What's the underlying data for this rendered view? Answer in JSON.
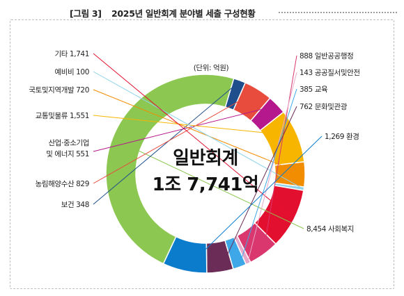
{
  "figure_label": "[그림 3]",
  "figure_title": "2025년 일반회계 분야별 세출 구성현황",
  "chart_data": {
    "type": "pie",
    "variant": "donut",
    "unit_note": "(단위: 억원)",
    "center_text_line1": "일반회계",
    "center_text_line2": "1조 7,741억",
    "legend_placement": "callout labels around ring",
    "slices": [
      {
        "name": "사회복지",
        "value": 8454,
        "label": "8,454 사회복지",
        "color": "#8cc751"
      },
      {
        "name": "보건",
        "value": 348,
        "label": "보건 348",
        "color": "#1f4e8c"
      },
      {
        "name": "농림해양수산",
        "value": 829,
        "label": "농림해양수산 829",
        "color": "#e84c3d"
      },
      {
        "name": "산업·중소기업 및 에너지",
        "value": 551,
        "label_line1": "산업·중소기업",
        "label_line2": "및 에너지 551",
        "color": "#b5178c"
      },
      {
        "name": "교통및물류",
        "value": 1551,
        "label": "교통및물류 1,551",
        "color": "#f7b500"
      },
      {
        "name": "국토및지역개발",
        "value": 720,
        "label": "국토및지역개발 720",
        "color": "#f28c00"
      },
      {
        "name": "예비비",
        "value": 100,
        "label": "예비비 100",
        "color": "#8fd3ea"
      },
      {
        "name": "기타",
        "value": 1741,
        "label": "기타 1,741",
        "color": "#e30f2f"
      },
      {
        "name": "일반공공행정",
        "value": 888,
        "label": "888 일반공공행정",
        "color": "#d9376e"
      },
      {
        "name": "공공질서및안전",
        "value": 143,
        "label": "143 공공질서및안전",
        "color": "#e6a8c8"
      },
      {
        "name": "교육",
        "value": 385,
        "label": "385 교육",
        "color": "#3ea7e8"
      },
      {
        "name": "문화및관광",
        "value": 762,
        "label": "762 문화및관광",
        "color": "#6b2c57"
      },
      {
        "name": "환경",
        "value": 1269,
        "label": "1,269 환경",
        "color": "#0b7ccc"
      }
    ]
  }
}
